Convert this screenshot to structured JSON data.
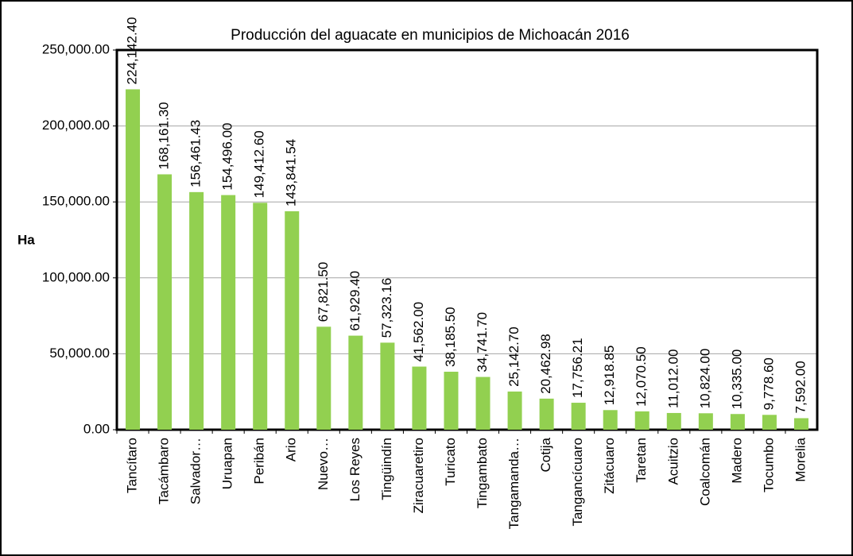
{
  "chart_data": {
    "type": "bar",
    "title": "Producción del aguacate en municipios de Michoacán 2016",
    "y_label": "Ha",
    "categories": [
      "Tancítaro",
      "Tacámbaro",
      "Salvador…",
      "Uruapan",
      "Peribán",
      "Ario",
      "Nuevo…",
      "Los Reyes",
      "Tingüindín",
      "Ziracuaretiro",
      "Turicato",
      "Tingambato",
      "Tangamanda…",
      "Cotija",
      "Tangancícuaro",
      "Zitácuaro",
      "Taretan",
      "Acuitzio",
      "Coalcomán",
      "Madero",
      "Tocumbo",
      "Morelia"
    ],
    "values": [
      224142.4,
      168161.3,
      156461.43,
      154496.0,
      149412.6,
      143841.54,
      67821.5,
      61929.4,
      57323.16,
      41562.0,
      38185.5,
      34741.7,
      25142.7,
      20462.98,
      17756.21,
      12918.85,
      12070.5,
      11012.0,
      10824.0,
      10335.0,
      9778.6,
      7592.0
    ],
    "value_labels": [
      "224,142.40",
      "168,161.30",
      "156,461.43",
      "154,496.00",
      "149,412.60",
      "143,841.54",
      "67,821.50",
      "61,929.40",
      "57,323.16",
      "41,562.00",
      "38,185.50",
      "34,741.70",
      "25,142.70",
      "20,462.98",
      "17,756.21",
      "12,918.85",
      "12,070.50",
      "11,012.00",
      "10,824.00",
      "10,335.00",
      "9,778.60",
      "7,592.00"
    ],
    "color": "#92d050",
    "ylim": [
      0,
      250000
    ],
    "yticks": [
      {
        "value": 0,
        "label": "0.00"
      },
      {
        "value": 50000,
        "label": "50,000.00"
      },
      {
        "value": 100000,
        "label": "100,000.00"
      },
      {
        "value": 150000,
        "label": "150,000.00"
      },
      {
        "value": 200000,
        "label": "200,000.00"
      },
      {
        "value": 250000,
        "label": "250,000.00"
      }
    ],
    "grid": true
  }
}
